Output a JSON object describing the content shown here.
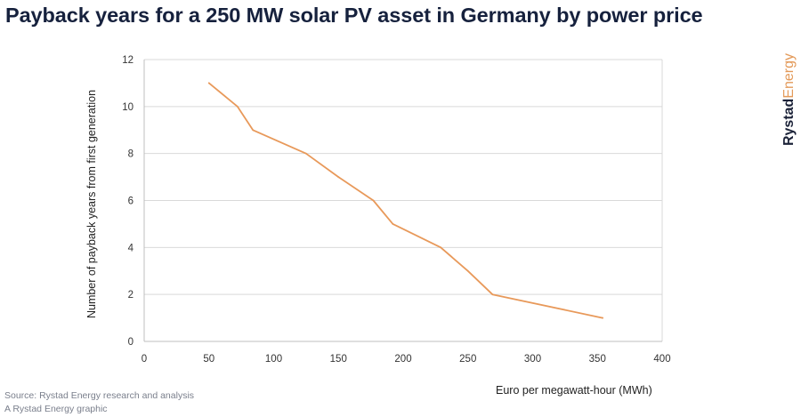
{
  "header": {
    "title": "Payback years for a 250 MW solar PV asset in Germany by power price"
  },
  "brand": {
    "part1": "Rystad",
    "part2": "Energy"
  },
  "footer": {
    "source": "Source: Rystad Energy research and analysis",
    "credit": "A Rystad Energy graphic"
  },
  "colors": {
    "line": "#e8995a",
    "title": "#16213d",
    "grid": "#d9d9d9",
    "brand_accent": "#e39a5a"
  },
  "chart_data": {
    "type": "line",
    "title": "Payback years for a 250 MW solar PV asset in Germany by power price",
    "xlabel": "Euro per megawatt-hour (MWh)",
    "ylabel": "Number of payback years from first generation",
    "xlim": [
      0,
      400
    ],
    "ylim": [
      0,
      12
    ],
    "x_ticks": [
      0,
      50,
      100,
      150,
      200,
      250,
      300,
      350,
      400
    ],
    "y_ticks": [
      0,
      2,
      4,
      6,
      8,
      10,
      12
    ],
    "grid": "horizontal",
    "legend": "none",
    "series": [
      {
        "x": [
          50,
          72,
          84,
          125,
          150,
          177,
          192,
          229,
          250,
          269,
          354
        ],
        "values": [
          11,
          10,
          9,
          8,
          7,
          6,
          5,
          4,
          3,
          2,
          1
        ]
      }
    ]
  }
}
